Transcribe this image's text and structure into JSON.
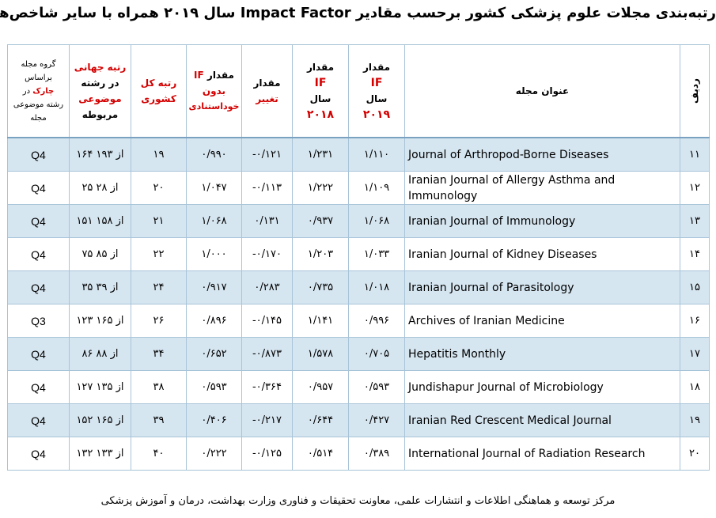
{
  "title": "رتبه‌بندی مجلات علوم پزشکی کشور برحسب مقادیر Impact Factor سال ۲۰۱۹ همراه با سایر شاخص‌ها",
  "headers": {
    "group": {
      "l1": "گروه مجله",
      "l2": "براساس",
      "l3": "چارک",
      "l3b": " در",
      "l4": "رشته موضوعی",
      "l5": "مجله"
    },
    "world_rank": {
      "l1": "رتبه جهانی",
      "l2": "در رشته",
      "l3": "موضوعی",
      "l4": "مربوطه"
    },
    "country_rank": {
      "l1": "رتبه کل",
      "l2": "کشوری"
    },
    "if_no_self": {
      "l1": "مقدار",
      "l1b": "IF",
      "l2": "بدون",
      "l3": "خوداستنادی"
    },
    "change": {
      "l1": "مقدار",
      "l2": "تغییر"
    },
    "if2018": {
      "l1": "مقدار",
      "l2": "IF",
      "l3": "سال",
      "l4": "۲۰۱۸"
    },
    "if2019": {
      "l1": "مقدار",
      "l2": "IF",
      "l3": "سال",
      "l4": "۲۰۱۹"
    },
    "journal": "عنوان مجله",
    "rank": "ردیف"
  },
  "rows": [
    {
      "group": "Q4",
      "world": "۱۶۴ از ۱۹۳",
      "country": "۱۹",
      "if_ns": "۰/۹۹۰",
      "change": "-۰/۱۲۱",
      "if18": "۱/۲۳۱",
      "if19": "۱/۱۱۰",
      "journal": "Journal of Arthropod-Borne Diseases",
      "rank": "۱۱",
      "shaded": true
    },
    {
      "group": "Q4",
      "world": "۲۵ از ۲۸",
      "country": "۲۰",
      "if_ns": "۱/۰۴۷",
      "change": "-۰/۱۱۳",
      "if18": "۱/۲۲۲",
      "if19": "۱/۱۰۹",
      "journal": "Iranian Journal of Allergy Asthma and Immunology",
      "rank": "۱۲",
      "shaded": false
    },
    {
      "group": "Q4",
      "world": "۱۵۱ از ۱۵۸",
      "country": "۲۱",
      "if_ns": "۱/۰۶۸",
      "change": "۰/۱۳۱",
      "if18": "۰/۹۳۷",
      "if19": "۱/۰۶۸",
      "journal": "Iranian Journal of Immunology",
      "rank": "۱۳",
      "shaded": true
    },
    {
      "group": "Q4",
      "world": "۷۵ از ۸۵",
      "country": "۲۲",
      "if_ns": "۱/۰۰۰",
      "change": "-۰/۱۷۰",
      "if18": "۱/۲۰۳",
      "if19": "۱/۰۳۳",
      "journal": "Iranian Journal of Kidney Diseases",
      "rank": "۱۴",
      "shaded": false
    },
    {
      "group": "Q4",
      "world": "۳۵ از ۳۹",
      "country": "۲۴",
      "if_ns": "۰/۹۱۷",
      "change": "۰/۲۸۳",
      "if18": "۰/۷۳۵",
      "if19": "۱/۰۱۸",
      "journal": "Iranian Journal of Parasitology",
      "rank": "۱۵",
      "shaded": true
    },
    {
      "group": "Q3",
      "world": "۱۲۳ از ۱۶۵",
      "country": "۲۶",
      "if_ns": "۰/۸۹۶",
      "change": "-۰/۱۴۵",
      "if18": "۱/۱۴۱",
      "if19": "۰/۹۹۶",
      "journal": "Archives of Iranian Medicine",
      "rank": "۱۶",
      "shaded": false
    },
    {
      "group": "Q4",
      "world": "۸۶ از ۸۸",
      "country": "۳۴",
      "if_ns": "۰/۶۵۲",
      "change": "-۰/۸۷۳",
      "if18": "۱/۵۷۸",
      "if19": "۰/۷۰۵",
      "journal": "Hepatitis Monthly",
      "rank": "۱۷",
      "shaded": true
    },
    {
      "group": "Q4",
      "world": "۱۲۷ از ۱۳۵",
      "country": "۳۸",
      "if_ns": "۰/۵۹۳",
      "change": "-۰/۳۶۴",
      "if18": "۰/۹۵۷",
      "if19": "۰/۵۹۳",
      "journal": "Jundishapur Journal of Microbiology",
      "rank": "۱۸",
      "shaded": false
    },
    {
      "group": "Q4",
      "world": "۱۵۲ از ۱۶۵",
      "country": "۳۹",
      "if_ns": "۰/۴۰۶",
      "change": "-۰/۲۱۷",
      "if18": "۰/۶۴۴",
      "if19": "۰/۴۲۷",
      "journal": "Iranian Red Crescent Medical Journal",
      "rank": "۱۹",
      "shaded": true
    },
    {
      "group": "Q4",
      "world": "۱۳۲ از ۱۳۳",
      "country": "۴۰",
      "if_ns": "۰/۲۲۲",
      "change": "-۰/۱۲۵",
      "if18": "۰/۵۱۴",
      "if19": "۰/۳۸۹",
      "journal": "International Journal of Radiation Research",
      "rank": "۲۰",
      "shaded": false
    }
  ],
  "footer": "مرکز توسعه و هماهنگی اطلاعات و انتشارات علمی، معاونت تحقیقات و فناوری وزارت بهداشت، درمان و آموزش پزشکی",
  "colors": {
    "header_red": "#d40000",
    "row_shade": "#d6e6f1",
    "border": "#a8c4d8"
  }
}
